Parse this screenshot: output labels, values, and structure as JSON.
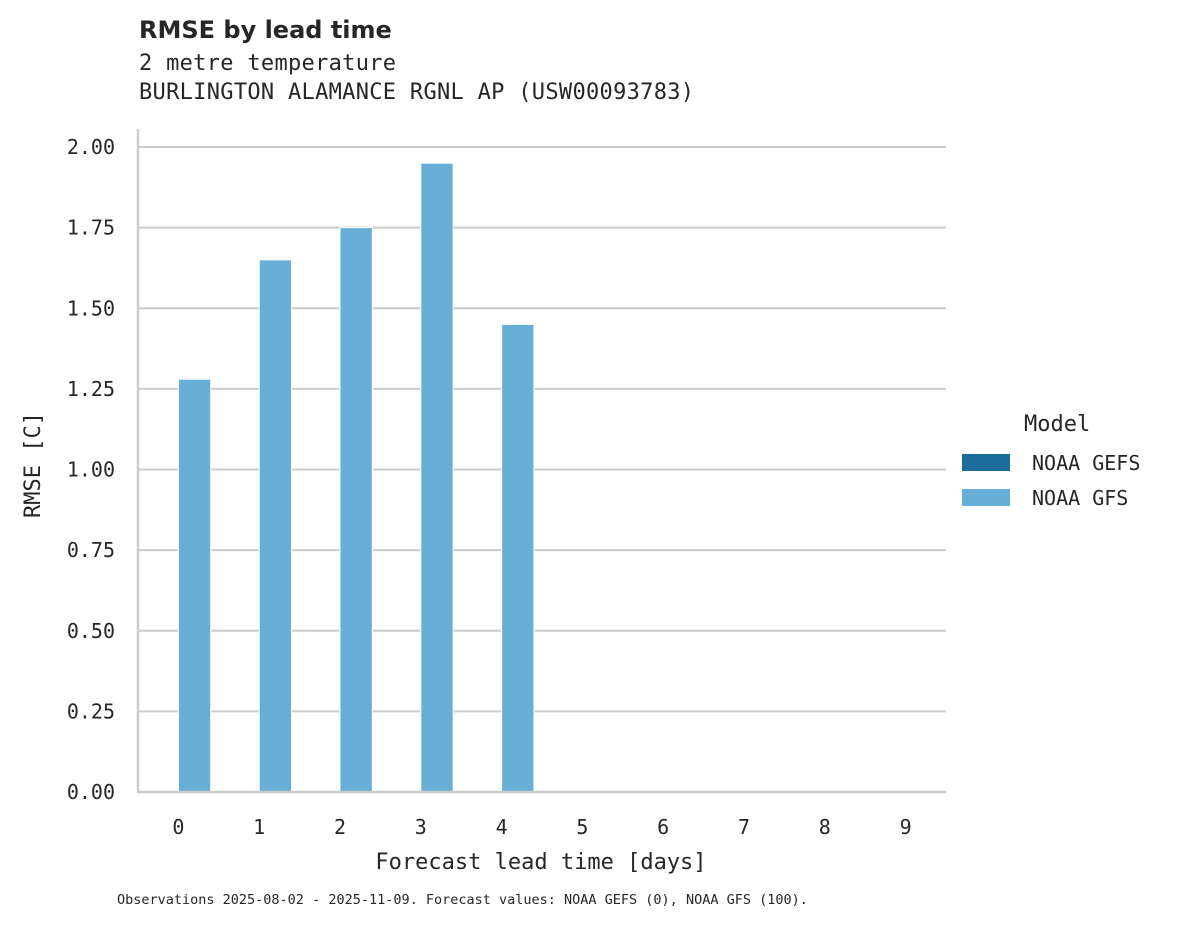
{
  "header": {
    "title": "RMSE by lead time",
    "subtitle_variable": "2 metre temperature",
    "subtitle_station": "BURLINGTON ALAMANCE RGNL AP (USW00093783)"
  },
  "footnote": "Observations 2025-08-02 - 2025-11-09. Forecast values: NOAA GEFS (0), NOAA GFS (100).",
  "legend": {
    "title": "Model",
    "items": [
      {
        "label": "NOAA GEFS",
        "color": "#1b6b9b"
      },
      {
        "label": "NOAA GFS",
        "color": "#67afd7"
      }
    ]
  },
  "chart_data": {
    "type": "bar",
    "title": "RMSE by lead time",
    "subtitle": "2 metre temperature — BURLINGTON ALAMANCE RGNL AP (USW00093783)",
    "xlabel": "Forecast lead time [days]",
    "ylabel": "RMSE [C]",
    "categories": [
      "0",
      "1",
      "2",
      "3",
      "4",
      "5",
      "6",
      "7",
      "8",
      "9"
    ],
    "series": [
      {
        "name": "NOAA GEFS",
        "color": "#1b6b9b",
        "values": [
          null,
          null,
          null,
          null,
          null,
          null,
          null,
          null,
          null,
          null
        ]
      },
      {
        "name": "NOAA GFS",
        "color": "#67afd7",
        "values": [
          1.28,
          1.65,
          1.75,
          1.95,
          1.45,
          null,
          null,
          null,
          null,
          null
        ]
      }
    ],
    "yticks": [
      "0.00",
      "0.25",
      "0.50",
      "0.75",
      "1.00",
      "1.25",
      "1.50",
      "1.75",
      "2.00"
    ],
    "ylim": [
      0,
      2.05
    ],
    "grid": "horizontal",
    "legend_position": "right"
  }
}
